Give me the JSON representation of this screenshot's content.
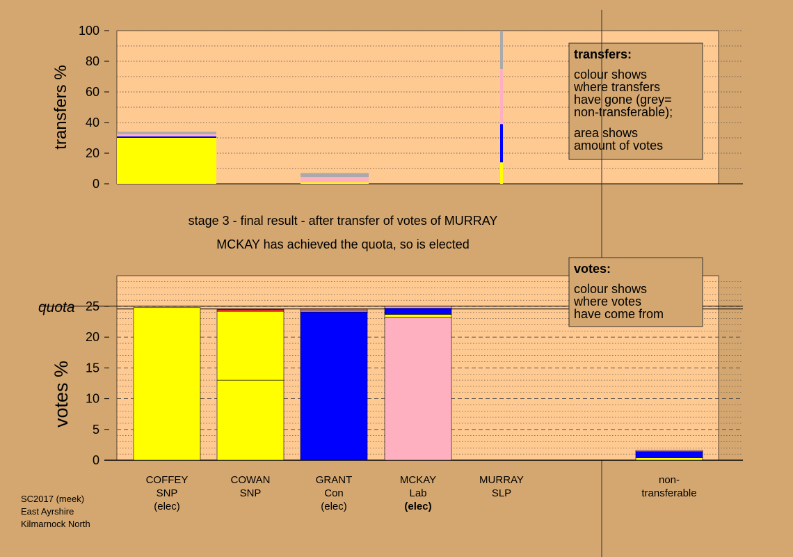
{
  "footer": {
    "line1": "SC2017 (meek)",
    "line2": "East Ayrshire",
    "line3": "Kilmarnock North"
  },
  "headline": {
    "line1": "stage 3 - final result - after transfer of votes of MURRAY",
    "line2": "MCKAY has achieved the quota, so is elected"
  },
  "colors": {
    "page_bg": "#d4a770",
    "plot_bg": "#ffc992",
    "snp": "#ffff00",
    "con": "#0000ff",
    "lab": "#ffb0c0",
    "nontransferable": "#aaaaaa",
    "legend_bg": "#d4a770"
  },
  "chart_data": [
    {
      "type": "bar",
      "id": "transfers",
      "ylabel": "transfers %",
      "ylim": [
        0,
        100
      ],
      "yticks": [
        0,
        20,
        40,
        60,
        80,
        100
      ],
      "grid": "dotted every 10",
      "legend": {
        "title": "transfers:",
        "lines1": [
          "colour shows",
          "where transfers",
          "have gone (grey=",
          "non-transferable);"
        ],
        "lines2": [
          "area shows",
          "amount of votes"
        ]
      },
      "bars": [
        {
          "source": "COFFEY",
          "width_votes": 24.8,
          "segments": [
            {
              "party": "SNP",
              "value": 30
            },
            {
              "party": "Con",
              "value": 1
            },
            {
              "party": "Lab",
              "value": 1.5
            },
            {
              "party": "non-transferable",
              "value": 1.5
            }
          ]
        },
        {
          "source": "COWAN",
          "width_votes": 12.5,
          "segments": [
            {
              "party": "SNP",
              "value": 1
            },
            {
              "party": "Lab",
              "value": 3.5
            },
            {
              "party": "non-transferable",
              "value": 2.5
            }
          ]
        },
        {
          "source": "MURRAY",
          "width_votes": 1.5,
          "segments": [
            {
              "party": "SNP",
              "value": 14
            },
            {
              "party": "Con",
              "value": 25
            },
            {
              "party": "Lab",
              "value": 36
            },
            {
              "party": "non-transferable",
              "value": 25
            }
          ]
        }
      ]
    },
    {
      "type": "bar",
      "id": "votes",
      "ylabel": "votes %",
      "ylim": [
        0,
        25
      ],
      "yticks": [
        0,
        5,
        10,
        15,
        20,
        25
      ],
      "quota": 24.8,
      "quota_label": "quota",
      "grid": "dashed every 5, dotted every 1",
      "legend": {
        "title": "votes:",
        "lines1": [
          "colour shows",
          "where votes",
          "have come from"
        ]
      },
      "categories": [
        {
          "lines": [
            "COFFEY",
            "SNP",
            "(elec)"
          ],
          "bold_last": false
        },
        {
          "lines": [
            "COWAN",
            "SNP"
          ],
          "bold_last": false
        },
        {
          "lines": [
            "GRANT",
            "Con",
            "(elec)"
          ],
          "bold_last": false
        },
        {
          "lines": [
            "MCKAY",
            "Lab",
            "(elec)"
          ],
          "bold_last": true
        },
        {
          "lines": [
            "MURRAY",
            "SLP"
          ],
          "bold_last": false
        },
        {
          "lines": [
            "non-",
            "transferable"
          ],
          "bold_last": false
        }
      ],
      "stacks": [
        [
          {
            "party": "SNP",
            "value": 24.8
          }
        ],
        [
          {
            "party": "SNP",
            "value": 13.0
          },
          {
            "party": "SNP",
            "value": 11.2
          },
          {
            "party": "SLP",
            "value": 0.3
          }
        ],
        [
          {
            "party": "Con",
            "value": 24.1
          },
          {
            "party": "Lab",
            "value": 0.3
          },
          {
            "party": "SLP",
            "value": 0.2
          }
        ],
        [
          {
            "party": "Lab",
            "value": 23.2
          },
          {
            "party": "SNP",
            "value": 0.5
          },
          {
            "party": "Con",
            "value": 1.0
          },
          {
            "party": "Lab",
            "value": 0.3
          }
        ],
        [],
        [
          {
            "party": "SNP",
            "value": 0.4
          },
          {
            "party": "Con",
            "value": 1.0
          },
          {
            "party": "Lab",
            "value": 0.2
          }
        ]
      ]
    }
  ]
}
